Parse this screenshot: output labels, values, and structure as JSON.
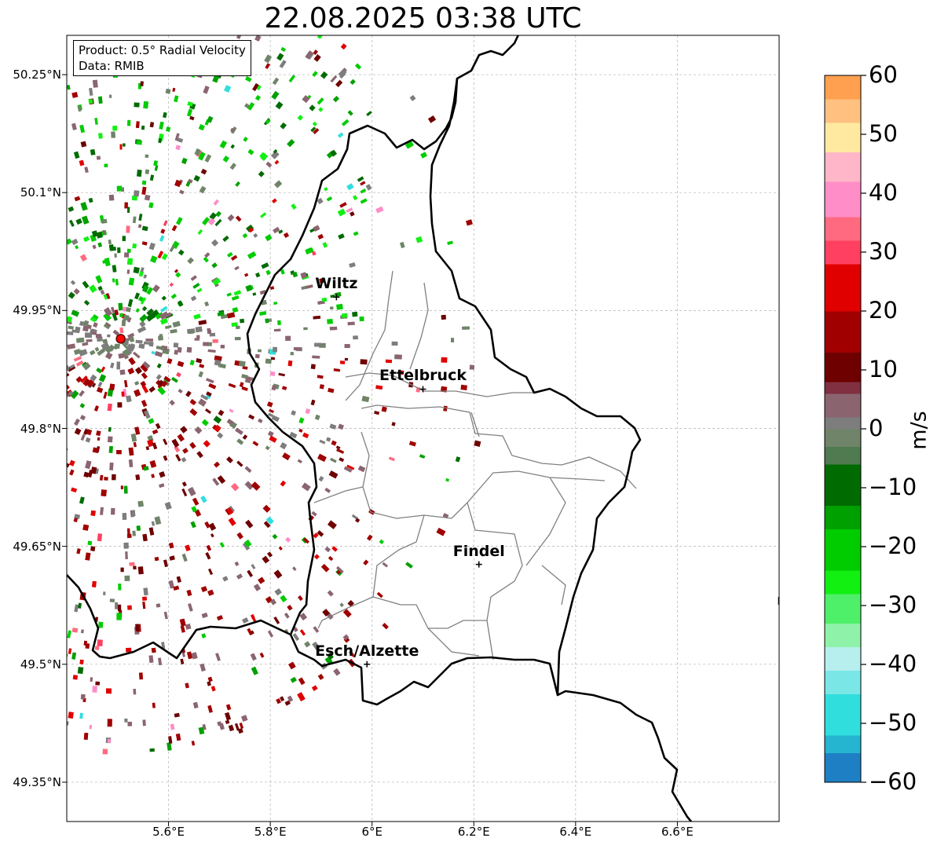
{
  "title": "22.08.2025 03:38 UTC",
  "info": {
    "product": "Product: 0.5° Radial Velocity",
    "source": "Data: RMIB"
  },
  "map": {
    "extent": {
      "lon": [
        5.4,
        6.8
      ],
      "lat": [
        49.3,
        50.3
      ]
    },
    "lon_ticks": [
      {
        "value": 5.6,
        "label": "5.6°E"
      },
      {
        "value": 5.8,
        "label": "5.8°E"
      },
      {
        "value": 6.0,
        "label": "6°E"
      },
      {
        "value": 6.2,
        "label": "6.2°E"
      },
      {
        "value": 6.4,
        "label": "6.4°E"
      },
      {
        "value": 6.6,
        "label": "6.6°E"
      }
    ],
    "lat_ticks": [
      {
        "value": 50.25,
        "label": "50.25°N"
      },
      {
        "value": 50.1,
        "label": "50.1°N"
      },
      {
        "value": 49.95,
        "label": "49.95°N"
      },
      {
        "value": 49.8,
        "label": "49.8°N"
      },
      {
        "value": 49.65,
        "label": "49.65°N"
      },
      {
        "value": 49.5,
        "label": "49.5°N"
      },
      {
        "value": 49.35,
        "label": "49.35°N"
      }
    ],
    "radar_site": {
      "lon": 5.506,
      "lat": 49.914
    },
    "cities": [
      {
        "name": "Wiltz",
        "lon": 5.93,
        "lat": 49.967
      },
      {
        "name": "Ettelbruck",
        "lon": 6.1,
        "lat": 49.85
      },
      {
        "name": "Findel",
        "lon": 6.21,
        "lat": 49.627
      },
      {
        "name": "Esch/Alzette",
        "lon": 5.99,
        "lat": 49.5
      }
    ],
    "colors": {
      "border": "#000000",
      "cantons": "#808080",
      "radar_site": "#ff0000",
      "grid": "#b0b0b0"
    }
  },
  "colorbar": {
    "unit": "m/s",
    "range": [
      -60,
      60
    ],
    "ticks": [
      {
        "value": 60,
        "label": "60"
      },
      {
        "value": 50,
        "label": "50"
      },
      {
        "value": 40,
        "label": "40"
      },
      {
        "value": 30,
        "label": "30"
      },
      {
        "value": 20,
        "label": "20"
      },
      {
        "value": 10,
        "label": "10"
      },
      {
        "value": 0,
        "label": "0"
      },
      {
        "value": -10,
        "label": "−10"
      },
      {
        "value": -20,
        "label": "−20"
      },
      {
        "value": -30,
        "label": "−30"
      },
      {
        "value": -40,
        "label": "−40"
      },
      {
        "value": -50,
        "label": "−50"
      },
      {
        "value": -60,
        "label": "−60"
      }
    ],
    "stops": [
      {
        "from": -60,
        "to": -55,
        "color": "#1f7fc4"
      },
      {
        "from": -55,
        "to": -52,
        "color": "#25b5d0"
      },
      {
        "from": -52,
        "to": -45,
        "color": "#31dede"
      },
      {
        "from": -45,
        "to": -41,
        "color": "#7ae6e6"
      },
      {
        "from": -41,
        "to": -37,
        "color": "#b7eeee"
      },
      {
        "from": -37,
        "to": -33,
        "color": "#8ef2a8"
      },
      {
        "from": -33,
        "to": -28,
        "color": "#4ef06a"
      },
      {
        "from": -28,
        "to": -24,
        "color": "#12f012"
      },
      {
        "from": -24,
        "to": -17,
        "color": "#00cc00"
      },
      {
        "from": -17,
        "to": -13,
        "color": "#00a000"
      },
      {
        "from": -13,
        "to": -6,
        "color": "#006b00"
      },
      {
        "from": -6,
        "to": -3,
        "color": "#507a50"
      },
      {
        "from": -3,
        "to": 0,
        "color": "#6f8468"
      },
      {
        "from": 0,
        "to": 2,
        "color": "#7d7d7d"
      },
      {
        "from": 2,
        "to": 6,
        "color": "#8a6570"
      },
      {
        "from": 6,
        "to": 8,
        "color": "#803040"
      },
      {
        "from": 8,
        "to": 13,
        "color": "#6e0000"
      },
      {
        "from": 13,
        "to": 20,
        "color": "#a00000"
      },
      {
        "from": 20,
        "to": 28,
        "color": "#e00000"
      },
      {
        "from": 28,
        "to": 32,
        "color": "#ff4060"
      },
      {
        "from": 32,
        "to": 36,
        "color": "#ff6a80"
      },
      {
        "from": 36,
        "to": 42,
        "color": "#ff8ec8"
      },
      {
        "from": 42,
        "to": 47,
        "color": "#ffb6c8"
      },
      {
        "from": 47,
        "to": 52,
        "color": "#ffe9a0"
      },
      {
        "from": 52,
        "to": 56,
        "color": "#ffc080"
      },
      {
        "from": 56,
        "to": 60,
        "color": "#ffa050"
      }
    ]
  }
}
